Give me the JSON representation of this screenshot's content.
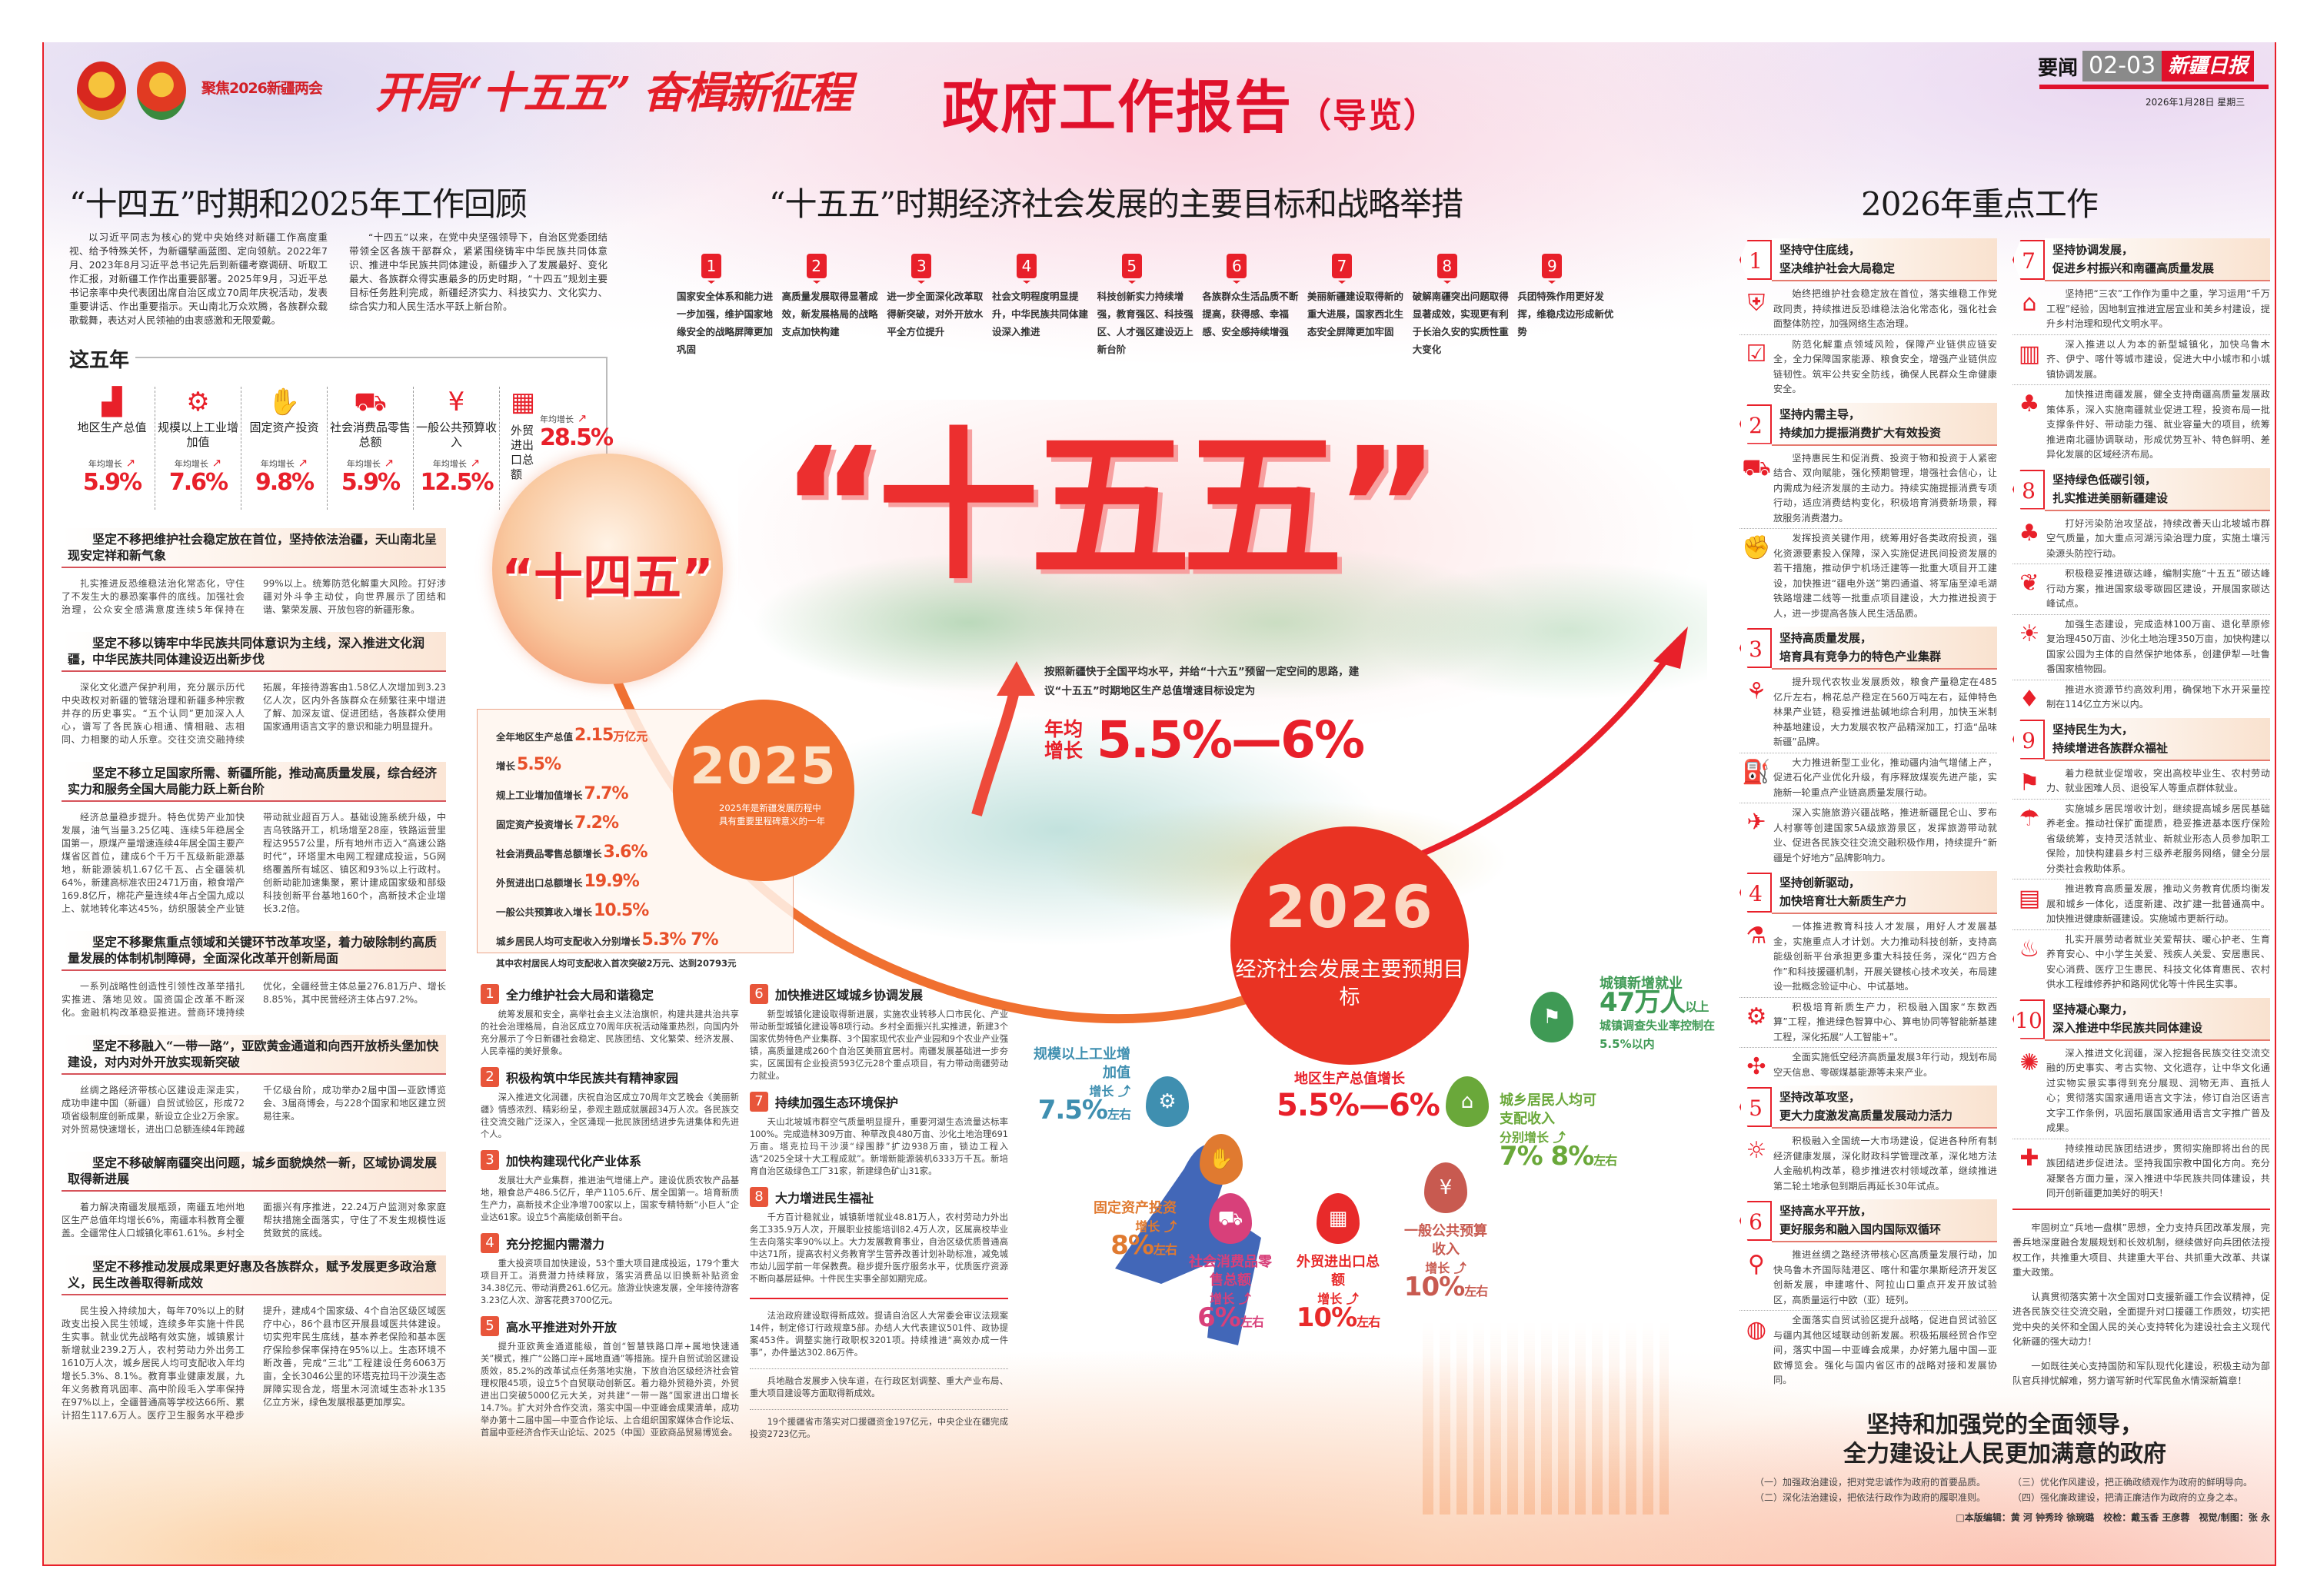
{
  "header": {
    "emblem_caption": "聚焦2026新疆两会",
    "slogan": "开局“十五五” 奋楫新征程",
    "title": "政府工作报告",
    "title_suffix": "（导览）",
    "section_label": "要闻",
    "pages": "02-03",
    "paper_name": "新疆日报",
    "date": "2026年1月28日 星期三"
  },
  "left": {
    "heading": "“十四五”时期和2025年工作回顾",
    "intro": [
      "以习近平同志为核心的党中央始终对新疆工作高度重视、给予特殊关怀，为新疆擘画蓝图、定向领航。2022年7月、2023年8月习近平总书记先后到新疆考察调研、听取工作汇报，对新疆工作作出重要部署。2025年9月，习近平总书记亲率中央代表团出席自治区成立70周年庆祝活动，发表重要讲话、作出重要指示。天山南北万众欢腾，各族群众载歌载舞，表达对人民领袖的由衷感激和无限爱戴。",
      "“十四五”以来，在党中央坚强领导下，自治区党委团结带领全区各族干部群众，紧紧围绕铸牢中华民族共同体意识、推进中华民族共同体建设，新疆步入了发展最好、变化最大、各族群众得实惠最多的历史时期，“十四五”规划主要目标任务胜利完成，新疆经济实力、科技实力、文化实力、综合实力和人民生活水平跃上新台阶。"
    ],
    "five_years": {
      "label": "这五年",
      "growth_label": "年均增长",
      "stats": [
        {
          "name": "地区生产总值",
          "value": "5.9%",
          "icon": "bar-chart-icon"
        },
        {
          "name": "规模以上工业增加值",
          "value": "7.6%",
          "icon": "gear-wrench-icon"
        },
        {
          "name": "固定资产投资",
          "value": "9.8%",
          "icon": "coins-hand-icon"
        },
        {
          "name": "社会消费品零售总额",
          "value": "5.9%",
          "icon": "shopping-cart-icon"
        },
        {
          "name": "一般公共预算收入",
          "value": "12.5%",
          "icon": "yen-coins-icon"
        },
        {
          "name": "外贸进出口总额",
          "value": "28.5%",
          "icon": "container-icon"
        }
      ]
    },
    "sections": [
      {
        "title": "坚定不移把维护社会稳定放在首位，坚持依法治疆，天山南北呈现安定祥和新气象",
        "body": "扎实推进反恐维稳法治化常态化，守住了不发生大的暴恐案事件的底线。加强社会治理，公众安全感满意度连续5年保持在99%以上。统筹防范化解重大风险。打好涉疆对外斗争主动仗，向世界展示了团结和谐、繁荣发展、开放包容的新疆形象。"
      },
      {
        "title": "坚定不移以铸牢中华民族共同体意识为主线，深入推进文化润疆，中华民族共同体建设迈出新步伐",
        "body": "深化文化遗产保护利用，充分展示历代中央政权对新疆的管辖治理和新疆多种宗教并存的历史事实。“五个认同”更加深入人心，谱写了各民族心相通、情相融、志相同、力相聚的动人乐章。交往交流交融持续拓展，年接待游客由1.58亿人次增加到3.23亿人次，区内外各族群众在频繁往来中增进了解、加深友谊、促进团结，各族群众使用国家通用语言文字的意识和能力明显提升。"
      },
      {
        "title": "坚定不移立足国家所需、新疆所能，推动高质量发展，综合经济实力和服务全国大局能力跃上新台阶",
        "body": "经济总量稳步提升。特色优势产业加快发展，油气当量3.25亿吨、连续5年稳居全国第一，原煤产量增速连续4年居全国主要产煤省区首位，建成6个千万千瓦级新能源基地，新能源装机1.67亿千瓦、占全疆装机64%，新建高标准农田2471万亩，粮食增产169.8亿斤，棉花产量连续4年占全国九成以上、就地转化率达45%，纺织服装全产业链带动就业超百万人。基础设施系统升级，中吉乌铁路开工，机场增至28座，铁路运营里程达9557公里，所有地州市迈入“高速公路时代”，环塔里木电网工程建成投运，5G网络覆盖所有城区、镇区和93%以上行政村。创新动能加速集聚，累计建成国家级和部级科技创新平台基地160个，高新技术企业增长3.2倍。"
      },
      {
        "title": "坚定不移聚焦重点领域和关键环节改革攻坚，着力破除制约高质量发展的体制机制障碍，全面深化改革开创新局面",
        "body": "一系列战略性创造性引领性改革举措扎实推进、落地见效。国资国企改革不断深化。金融机构改革稳妥推进。营商环境持续优化，全疆经营主体总量276.81万户、增长8.85%，其中民营经济主体占97.2%。"
      },
      {
        "title": "坚定不移融入“一带一路”，亚欧黄金通道和向西开放桥头堡加快建设，对内对外开放实现新突破",
        "body": "丝绸之路经济带核心区建设走深走实，成功申建中国（新疆）自贸试验区，形成72项省级制度创新成果，新设立企业2万余家。对外贸易快速增长，进出口总额连续4年跨越千亿级台阶，成功举办2届中国—亚欧博览会、3届商博会，与228个国家和地区建立贸易往来。"
      },
      {
        "title": "坚定不移破解南疆突出问题，城乡面貌焕然一新，区域协调发展取得新进展",
        "body": "着力解决南疆发展瓶颈，南疆五地州地区生产总值年均增长6%，南疆本科教育全覆盖。全疆常住人口城镇化率61.61%。乡村全面振兴有序推进，22.24万户监测对象家庭帮扶措施全面落实，守住了不发生规模性返贫致贫的底线。"
      },
      {
        "title": "坚定不移推动发展成果更好惠及各族群众，赋予发展更多政治意义，民生改善取得新成效",
        "body": "民生投入持续加大，每年70%以上的财政支出投入民生领域，连续多年实施十件民生实事。就业优先战略有效实施，城镇累计新增就业239.2万人，农村劳动力外出务工1610万人次，城乡居民人均可支配收入年均增长5.3%、8.1%。教育事业健康发展，九年义务教育巩固率、高中阶段毛入学率保持在97%以上，全疆普通高等学校达66所、累计招生117.6万人。医疗卫生服务水平稳步提升，建成4个国家级、4个自治区级区域医疗中心，86个县市区开展县域医共体建设。切实兜牢民生底线，基本养老保险和基本医疗保险参保率保持在95%以上。生态环境不断改善，完成“三北”工程建设任务6063万亩，全长3046公里的环塔克拉玛干沙漠生态屏障实现合龙，塔里木河流域生态补水135亿立方米，绿色发展根基更加厚实。"
      }
    ]
  },
  "middle": {
    "heading": "“十五五”时期经济社会发展的主要目标和战略举措",
    "goals": [
      {
        "num": "1",
        "text": "国家安全体系和能力进一步加强，维护国家地缘安全的战略屏障更加巩固"
      },
      {
        "num": "2",
        "text": "高质量发展取得显著成效，新发展格局的战略支点加快构建"
      },
      {
        "num": "3",
        "text": "进一步全面深化改革取得新突破，对外开放水平全方位提升"
      },
      {
        "num": "4",
        "text": "社会文明程度明显提升，中华民族共同体建设深入推进"
      },
      {
        "num": "5",
        "text": "科技创新实力持续增强，教育强区、科技强区、人才强区建设迈上新台阶"
      },
      {
        "num": "6",
        "text": "各族群众生活品质不断提高，获得感、幸福感、安全感持续增强"
      },
      {
        "num": "7",
        "text": "美丽新疆建设取得新的重大进展，国家西北生态安全屏障更加牢固"
      },
      {
        "num": "8",
        "text": "破解南疆突出问题取得显著成效，实现更有利于长治久安的实质性重大变化"
      },
      {
        "num": "9",
        "text": "兵团特殊作用更好发挥，维稳戍边形成新优势"
      }
    ],
    "big_title": "“十五五”",
    "shisiwu_label": "“十四五”",
    "year2025": {
      "year": "2025",
      "caption": "2025年是新疆发展历程中具有重要里程碑意义的一年",
      "stats": [
        {
          "label": "全年地区生产总值",
          "value": "2.15",
          "unit": "万亿元"
        },
        {
          "label": "增长",
          "value": "5.5%",
          "unit": ""
        },
        {
          "label": "规上工业增加值增长",
          "value": "7.7%",
          "unit": ""
        },
        {
          "label": "固定资产投资增长",
          "value": "7.2%",
          "unit": ""
        },
        {
          "label": "社会消费品零售总额增长",
          "value": "3.6%",
          "unit": ""
        },
        {
          "label": "外贸进出口总额增长",
          "value": "19.9%",
          "unit": ""
        },
        {
          "label": "一般公共预算收入增长",
          "value": "10.5%",
          "unit": ""
        },
        {
          "label": "城乡居民人均可支配收入分别增长",
          "value": "5.3%  7%",
          "unit": ""
        }
      ],
      "note": "其中农村居民人均可支配收入首次突破2万元、达到20793元"
    },
    "plan_target": {
      "description": "按照新疆快于全国平均水平，并给“十六五”预留一定空间的思路，建议“十五五”时期地区生产总值增速目标设定为",
      "growth_label": "年均增长",
      "value": "5.5%—6%"
    },
    "year2026": {
      "year": "2026",
      "caption": "经济社会发展主要预期目标",
      "targets": [
        {
          "name": "规模以上工业增加值",
          "growth": "增长",
          "value": "7.5%",
          "suffix": "左右",
          "color": "#3f8fb0",
          "icon": "gear-wrench-icon"
        },
        {
          "name": "固定资产投资",
          "growth": "增长",
          "value": "8%",
          "suffix": "左右",
          "color": "#e07a30",
          "icon": "coins-hand-icon"
        },
        {
          "name": "社会消费品零售总额",
          "growth": "增长",
          "value": "6%",
          "suffix": "左右",
          "color": "#d8407a",
          "icon": "shopping-cart-icon"
        },
        {
          "name": "外贸进出口总额",
          "growth": "增长",
          "value": "10%",
          "suffix": "左右",
          "color": "#e82a2a",
          "icon": "container-icon"
        },
        {
          "name": "一般公共预算收入",
          "growth": "增长",
          "value": "10%",
          "suffix": "左右",
          "color": "#c85a50",
          "icon": "yen-coins-icon"
        },
        {
          "name": "城乡居民人均可支配收入",
          "growth": "分别增长",
          "value": "7% 8%",
          "suffix": "左右",
          "color": "#6aa83a",
          "icon": "wallet-house-icon"
        },
        {
          "name": "城镇新增就业",
          "growth": "城镇调查失业率控制在5.5%以内",
          "value": "47万人",
          "suffix": "以上",
          "color": "#3f9a55",
          "icon": "running-man-icon"
        },
        {
          "name": "地区生产总值增长",
          "growth": "",
          "value": "5.5%—6%",
          "suffix": "",
          "color": "#e8202a",
          "icon": ""
        }
      ]
    },
    "sections": [
      {
        "num": "1",
        "title": "全力维护社会大局和谐稳定",
        "body": "统筹发展和安全，高举社会主义法治旗帜，构建共建共治共享的社会治理格局，自治区成立70周年庆祝活动隆重热烈，向国内外充分展示了今日新疆社会稳定、民族团结、文化繁荣、经济发展、人民幸福的美好景象。"
      },
      {
        "num": "2",
        "title": "积极构筑中华民族共有精神家园",
        "body": "深入推进文化润疆，庆祝自治区成立70周年文艺晚会《美丽新疆》情感浓烈、精彩纷呈，参观主题成就展超34万人次。各民族交往交流交融广泛深入，全区涌现一批民族团结进步先进集体和先进个人。"
      },
      {
        "num": "3",
        "title": "加快构建现代化产业体系",
        "body": "发展壮大产业集群，推进油气增储上产。建设优质农牧产品基地，粮食总产486.5亿斤，单产1105.6斤、居全国第一。培育新质生产力，高新技术企业净增700家以上，国家专精特新“小巨人”企业达61家。设立5个高能级创新平台。"
      },
      {
        "num": "4",
        "title": "充分挖掘内需潜力",
        "body": "重大投资项目加快建设，53个重大项目建成投运，179个重大项目开工。消费潜力持续释放，落实消费品以旧换新补贴资金34.38亿元、带动消费261.6亿元。旅游业快速发展，全年接待游客3.23亿人次、游客花费3700亿元。"
      },
      {
        "num": "5",
        "title": "高水平推进对外开放",
        "body": "提升亚欧黄金通道能级，首创“智慧铁路口岸+属地快速通关”模式，推广“公路口岸+属地直通”等措施。提升自贸试验区建设质效，85.2%的改革试点任务落地实施，下放自治区级经济社会管理权限45项，设立5个自贸联动创新区。着力稳外贸稳外资，外贸进出口突破5000亿元大关，对共建“一带一路”国家进出口增长14.7%。扩大对外合作交流，落实中国—中亚峰会成果清单，成功举办第十二届中国—中亚合作论坛、上合组织国家媒体合作论坛、首届中亚经济合作天山论坛、2025（中国）亚欧商品贸易博览会。"
      },
      {
        "num": "6",
        "title": "加快推进区域城乡协调发展",
        "body": "新型城镇化建设取得新进展，实施农业转移人口市民化、产业带动新型城镇化建设等8项行动。乡村全面振兴扎实推进，新建3个国家优势特色产业集群、3个国家现代农业产业园和9个农业产业强镇，高质量建成260个自治区美丽宜居村。南疆发展基础进一步夯实，区属国有企业投资593亿元28个重点项目，有力带动南疆劳动力就业。"
      },
      {
        "num": "7",
        "title": "持续加强生态环境保护",
        "body": "天山北坡城市群空气质量明显提升，重要河湖生态流量达标率100%。完成造林309万亩、种草改良480万亩、沙化土地治理691万亩。塔克拉玛干沙漠“绿围脖”扩边938万亩，锁边工程入选“2025全球十大工程成就”。新增新能源装机6333万千瓦。新培育自治区级绿色工厂31家，新建绿色矿山31家。"
      },
      {
        "num": "8",
        "title": "大力增进民生福祉",
        "body": "千方百计稳就业，城镇新增就业48.81万人，农村劳动力外出务工335.9万人次，开展职业技能培训82.4万人次，区属高校毕业生去向落实率90%以上。大力发展教育事业，自治区级优质普通高中达71所，提高农村义务教育学生营养改善计划补助标准，减免城市幼儿园学前一年保教费。稳步提升医疗服务水平，优质医疗资源不断向基层延伸。十件民生实事全部如期完成。"
      }
    ],
    "extras": [
      "法治政府建设取得新成效。提请自治区人大常委会审议法规案14件，制定修订行政规章5部。办结人大代表建议501件、政协提案453件。调整实施行政职权3201项。持续推进“高效办成一件事”，办件量达302.86万件。",
      "兵地融合发展步入快车道，在行政区划调整、重大产业布局、重大项目建设等方面取得新成效。",
      "19个援疆省市落实对口援疆资金197亿元，中央企业在疆完成投资2723亿元。"
    ]
  },
  "right": {
    "heading": "2026年重点工作",
    "items": [
      {
        "num": "1",
        "title": [
          "坚持守住底线，",
          "坚决维护社会大局稳定"
        ],
        "paras": [
          {
            "icon": "shield-icon",
            "text": "始终把维护社会稳定放在首位，落实维稳工作党政同责，持续推进反恐维稳法治化常态化，强化社会面整体防控，加强网络生态治理。"
          },
          {
            "icon": "clipboard-check-icon",
            "text": "防范化解重点领域风险，保障产业链供应链安全，全力保障国家能源、粮食安全，增强产业链供应链韧性。筑牢公共安全防线，确保人民群众生命健康安全。"
          }
        ]
      },
      {
        "num": "2",
        "title": [
          "坚持内需主导，",
          "持续加力提振消费扩大有效投资"
        ],
        "paras": [
          {
            "icon": "shopping-cart-icon",
            "text": "坚持惠民生和促消费、投资于物和投资于人紧密结合、双向赋能，强化预期管理，增强社会信心，让内需成为经济发展的主动力。持续实施提振消费专项行动，适应消费结构变化，积极培育消费新场景，释放服务消费潜力。"
          },
          {
            "icon": "money-hand-icon",
            "text": "发挥投资关键作用，统筹用好各类政府投资，强化资源要素投入保障，深入实施促进民间投资发展的若干措施，推动伊宁机场迁建等一批重大项目开工建设，加快推进“疆电外送”第四通道、将军庙至淖毛湖铁路增建二线等一批重点项目建设，大力推进投资于人，进一步提高各族人民生活品质。"
          }
        ]
      },
      {
        "num": "3",
        "title": [
          "坚持高质量发展，",
          "培育具有竞争力的特色产业集群"
        ],
        "paras": [
          {
            "icon": "tractor-wheat-icon",
            "text": "提升现代农牧业发展质效，粮食产量稳定在485亿斤左右，棉花总产稳定在560万吨左右，延伸特色林果产业链，稳妥推进盐碱地综合利用，加快玉米制种基地建设，大力发展农牧产品精深加工，打造“品味新疆”品牌。"
          },
          {
            "icon": "oil-pump-icon",
            "text": "大力推进新型工业化，推动疆内油气增储上产，促进石化产业优化升级，有序释放煤炭先进产能，实施新一轮重点产业链高质量发展行动。"
          },
          {
            "icon": "traveler-icon",
            "text": "深入实施旅游兴疆战略，推进新疆昆仑山、罗布人村寨等创建国家5A级旅游景区，发挥旅游带动就业、促进各民族交往交流交融积极作用，持续提升“新疆是个好地方”品牌影响力。"
          }
        ]
      },
      {
        "num": "4",
        "title": [
          "坚持创新驱动，",
          "加快培育壮大新质生产力"
        ],
        "paras": [
          {
            "icon": "microscope-icon",
            "text": "一体推进教育科技人才发展，用好人才发展基金，实施重点人才计划。大力推动科技创新，支持高能级创新平台承担更多重大科技任务，深化“四方合作”和科技援疆机制，开展关键核心技术攻关，布局建设一批概念验证中心、中试基地。"
          },
          {
            "icon": "chip-gear-icon",
            "text": "积极培育新质生产力，积极融入国家“东数西算”工程，推进绿色智算中心、算电协同等智能新基建工程，深化拓展“人工智能+”。"
          },
          {
            "icon": "drone-icon",
            "text": "全面实施低空经济高质量发展3年行动，规划布局空天信息、零碳煤基能源等未来产业。"
          }
        ]
      },
      {
        "num": "5",
        "title": [
          "坚持改革攻坚，",
          "更大力度激发高质量发展动力活力"
        ],
        "paras": [
          {
            "icon": "lightbulb-cycle-icon",
            "text": "积极融入全国统一大市场建设，促进各种所有制经济健康发展，深化财政科学管理改革，深化地方法人金融机构改革，稳步推进农村领域改革，继续推进第二轮土地承包到期后再延长30年试点。"
          }
        ]
      },
      {
        "num": "6",
        "title": [
          "坚持高水平开放，",
          "更好服务和融入国内国际双循环"
        ],
        "paras": [
          {
            "icon": "map-pin-icon",
            "text": "推进丝绸之路经济带核心区高质量发展行动，加快乌鲁木齐国际陆港区、喀什和霍尔果斯经济开发区创新发展，申建喀什、阿拉山口重点开发开放试验区，高质量运行中欧（亚）班列。"
          },
          {
            "icon": "globe-pin-icon",
            "text": "全面落实自贸试验区提升战略，促进自贸试验区与疆内其他区域联动创新发展。积极拓展经贸合作空间，落实中国—中亚峰会成果，办好第九届中国—亚欧博览会。强化与国内省区市的战略对接和发展协同。"
          }
        ]
      },
      {
        "num": "7",
        "title": [
          "坚持协调发展，",
          "促进乡村振兴和南疆高质量发展"
        ],
        "paras": [
          {
            "icon": "house-tree-icon",
            "text": "坚持把“三农”工作作为重中之重，学习运用“千万工程”经验，因地制宜推进宜居宜业和美乡村建设，提升乡村治理和现代文明水平。"
          },
          {
            "icon": "city-buildings-icon",
            "text": "深入推进以人为本的新型城镇化，加快乌鲁木齐、伊宁、喀什等城市建设，促进大中小城市和小城镇协调发展。"
          },
          {
            "icon": "tree-house-icon",
            "text": "加快推进南疆发展，健全支持南疆高质量发展政策体系，深入实施南疆就业促进工程，投资布局一批支撑条件好、带动能力强、就业容量大的项目，统筹推进南北疆协调联动，形成优势互补、特色鲜明、差异化发展的区域经济布局。"
          }
        ]
      },
      {
        "num": "8",
        "title": [
          "坚持绿色低碳引领，",
          "扎实推进美丽新疆建设"
        ],
        "paras": [
          {
            "icon": "trees-icon",
            "text": "打好污染防治攻坚战，持续改善天山北坡城市群空气质量，加大重点河湖污染治理力度，实施土壤污染源头防控行动。"
          },
          {
            "icon": "leaf-chart-icon",
            "text": "积极稳妥推进碳达峰，编制实施“十五五”碳达峰行动方案，推进国家级零碳园区建设，开展国家碳达峰试点。"
          },
          {
            "icon": "solar-forest-icon",
            "text": "加强生态建设，完成造林100万亩、退化草原修复治理450万亩、沙化土地治理350万亩，加快构建以国家公园为主体的自然保护地体系，创建伊犁—吐鲁番国家植物园。"
          },
          {
            "icon": "water-drop-icon",
            "text": "推进水资源节约高效利用，确保地下水开采量控制在114亿立方米以内。"
          }
        ]
      },
      {
        "num": "9",
        "title": [
          "坚持民生为大，",
          "持续增进各族群众福祉"
        ],
        "paras": [
          {
            "icon": "running-man-icon",
            "text": "着力稳就业促增收，突出高校毕业生、农村劳动力、就业困难人员、退役军人等重点群体就业。"
          },
          {
            "icon": "umbrella-family-icon",
            "text": "实施城乡居民增收计划，继续提高城乡居民基础养老金。推动社保扩面提质，稳妥推进基本医疗保险省级统筹，支持灵活就业、新就业形态人员参加职工保险，加快构建县乡村三级养老服务网络，健全分层分类社会救助体系。"
          },
          {
            "icon": "graduation-books-icon",
            "text": "推进教育高质量发展，推动义务教育优质均衡发展和城乡一体化，适度新建、改扩建一批普通高中。加快推进健康新疆建设。实施城市更新行动。"
          },
          {
            "icon": "flame-hand-icon",
            "text": "扎实开展劳动者就业关爱帮扶、暖心护老、生育养育安心、中小学生关爱、残疾人关爱、安居惠民、安心消费、医疗卫生惠民、科技文化体育惠民、农村供水工程维修养护和路网优化等十件民生实事。"
          }
        ]
      },
      {
        "num": "10",
        "title": [
          "坚持凝心聚力，",
          "深入推进中华民族共同体建设"
        ],
        "paras": [
          {
            "icon": "dancers-icon",
            "text": "深入推进文化润疆，深入挖掘各民族交往交流交融的历史事实、考古实物、文化遗存，让中华文化通过实物实景实事得到充分展现、润物无声、直抵人心；贯彻落实国家通用语言文字法，修订自治区语言文字工作条例，巩固拓展国家通用语言文字推广普及成果。"
          },
          {
            "icon": "handshake-icon",
            "text": "持续推动民族团结进步，贯彻实施即将出台的民族团结进步促进法。坚持我国宗教中国化方向。充分凝聚各方面力量，深入推进中华民族共同体建设，共同开创新疆更加美好的明天！"
          }
        ]
      }
    ],
    "extras": [
      "牢固树立“兵地一盘棋”思想，全力支持兵团改革发展，完善兵地深度融合发展规划和长效机制，继续做好向兵团依法授权工作，共推重大项目、共建重大平台、共抓重大改革、共谋重大政策。",
      "认真贯彻落实第十次全国对口支援新疆工作会议精神，促进各民族交往交流交融，全面提升对口援疆工作质效，切实把党中央的关怀和全国人民的关心支持转化为建设社会主义现代化新疆的强大动力！",
      "一如既往关心支持国防和军队现代化建设，积极主动为部队官兵排忧解难，努力谱写新时代军民鱼水情深新篇章！"
    ],
    "closing": {
      "title": [
        "坚持和加强党的全面领导，",
        "全力建设让人民更加满意的政府"
      ],
      "items": [
        "（一）加强政治建设，把对党忠诚作为政府的首要品质。",
        "（二）深化法治建设，把依法行政作为政府的履职准则。",
        "（三）优化作风建设，把正确政绩观作为政府的鲜明导向。",
        "（四）强化廉政建设，把清正廉洁作为政府的立身之本。"
      ]
    },
    "credits": "□本版编辑：黄 河 钟秀玲 徐琬璐　校检：戴玉香 王彦蓉　视觉/制图：张 永"
  },
  "colors": {
    "accent": "#e8202a",
    "orange": "#f07030",
    "peach": "#f9e2cf"
  }
}
